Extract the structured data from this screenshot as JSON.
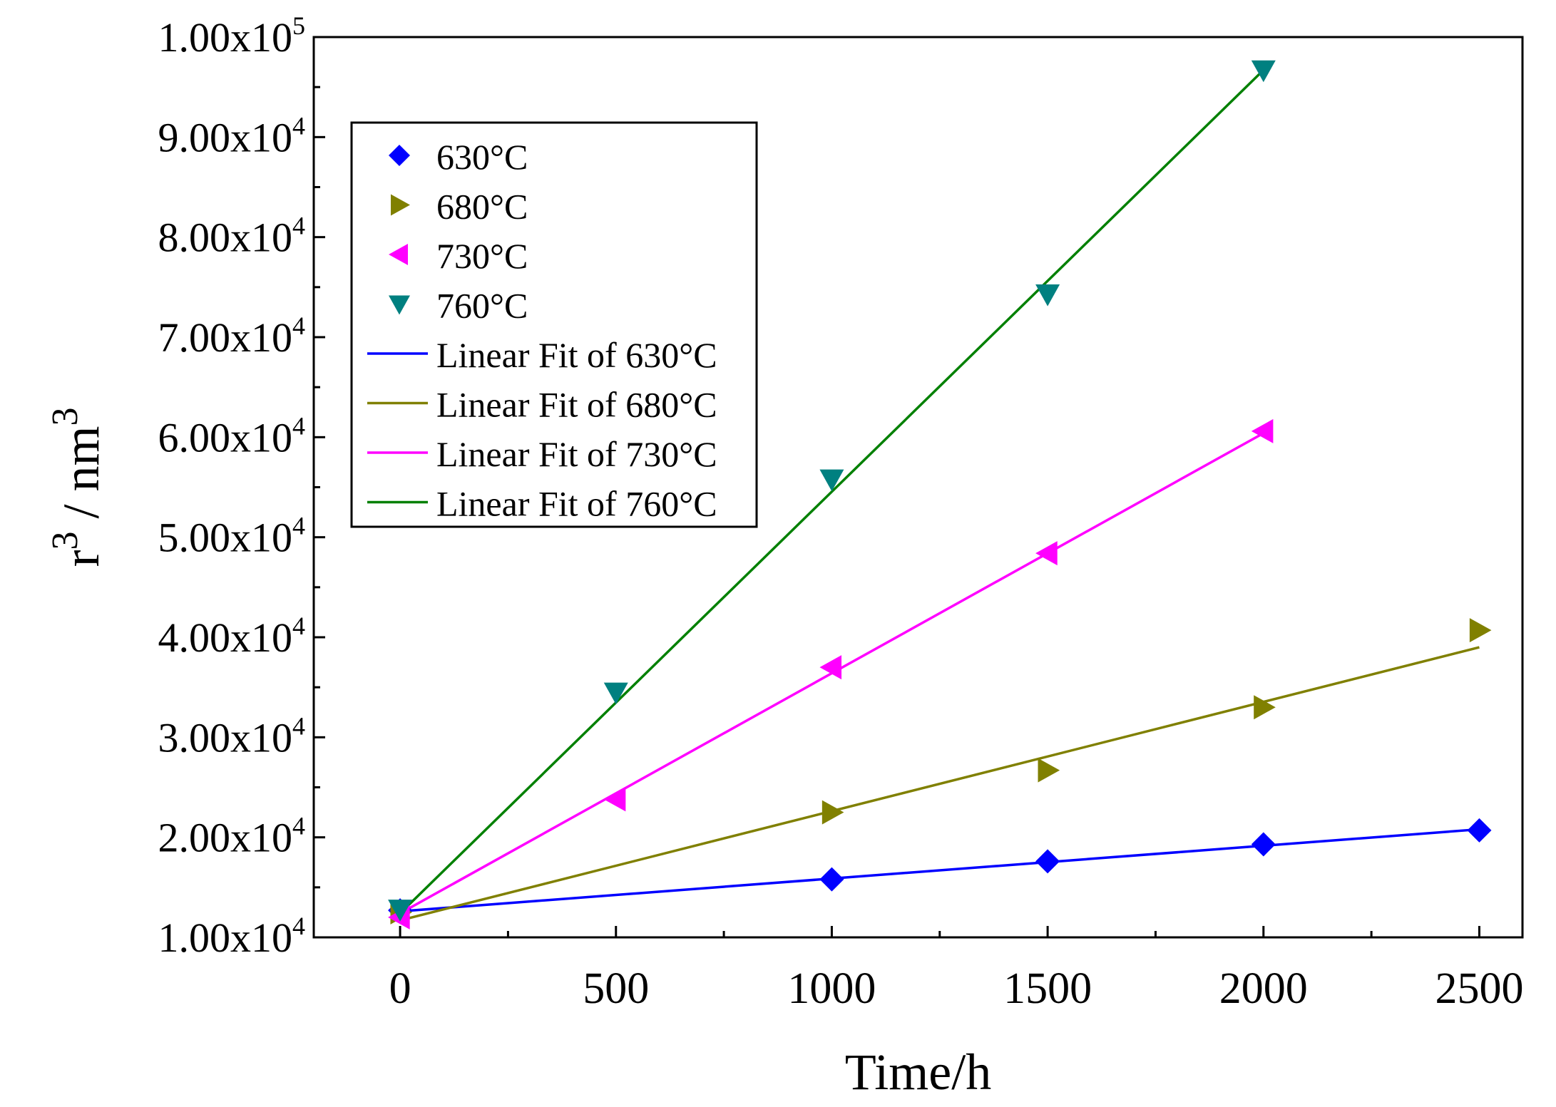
{
  "chart_data": {
    "type": "scatter",
    "xlabel": "Time/h",
    "ylabel": {
      "base": "r",
      "base_sup": "3",
      "sep": " / ",
      "unit": "nm",
      "unit_sup": "3"
    },
    "xlim": [
      -200,
      2600
    ],
    "ylim": [
      10000,
      100000
    ],
    "x_ticks": [
      0,
      500,
      1000,
      1500,
      2000,
      2500
    ],
    "x_tick_labels": [
      "0",
      "500",
      "1000",
      "1500",
      "2000",
      "2500"
    ],
    "y_ticks": [
      10000,
      20000,
      30000,
      40000,
      50000,
      60000,
      70000,
      80000,
      90000,
      100000
    ],
    "y_tick_labels": [
      {
        "mantissa": "1.00x10",
        "exp": "4"
      },
      {
        "mantissa": "2.00x10",
        "exp": "4"
      },
      {
        "mantissa": "3.00x10",
        "exp": "4"
      },
      {
        "mantissa": "4.00x10",
        "exp": "4"
      },
      {
        "mantissa": "5.00x10",
        "exp": "4"
      },
      {
        "mantissa": "6.00x10",
        "exp": "4"
      },
      {
        "mantissa": "7.00x10",
        "exp": "4"
      },
      {
        "mantissa": "8.00x10",
        "exp": "4"
      },
      {
        "mantissa": "9.00x10",
        "exp": "4"
      },
      {
        "mantissa": "1.00x10",
        "exp": "5"
      }
    ],
    "grid": false,
    "legend_position": "top-left",
    "series": [
      {
        "name": "630°C",
        "marker": "diamond",
        "color": "#0000FF",
        "x": [
          0,
          1000,
          1500,
          2000,
          2500
        ],
        "y": [
          12700,
          15800,
          17600,
          19300,
          20700
        ],
        "fit": {
          "name": "Linear Fit of 630°C",
          "x": [
            0,
            2500
          ],
          "y": [
            12600,
            20800
          ]
        }
      },
      {
        "name": "680°C",
        "marker": "triangle-right",
        "color": "#808000",
        "x": [
          0,
          1000,
          1500,
          2000,
          2500
        ],
        "y": [
          12500,
          22500,
          26700,
          33000,
          40700
        ],
        "fit": {
          "name": "Linear Fit of 680°C",
          "x": [
            0,
            2500
          ],
          "y": [
            11700,
            39000
          ]
        }
      },
      {
        "name": "730°C",
        "marker": "triangle-left",
        "color": "#FF00FF",
        "x": [
          0,
          500,
          1000,
          1500,
          2000
        ],
        "y": [
          12000,
          23800,
          37000,
          48400,
          60600
        ],
        "fit": {
          "name": "Linear Fit of 730°C",
          "x": [
            0,
            2000
          ],
          "y": [
            12400,
            60400
          ]
        }
      },
      {
        "name": "760°C",
        "marker": "triangle-down",
        "color": "#008080",
        "fit_color": "#008000",
        "x": [
          0,
          500,
          1000,
          1500,
          2000
        ],
        "y": [
          12800,
          34500,
          55800,
          74300,
          96700
        ],
        "fit": {
          "name": "Linear Fit of 760°C",
          "x": [
            0,
            2000
          ],
          "y": [
            12400,
            96700
          ]
        }
      }
    ]
  }
}
